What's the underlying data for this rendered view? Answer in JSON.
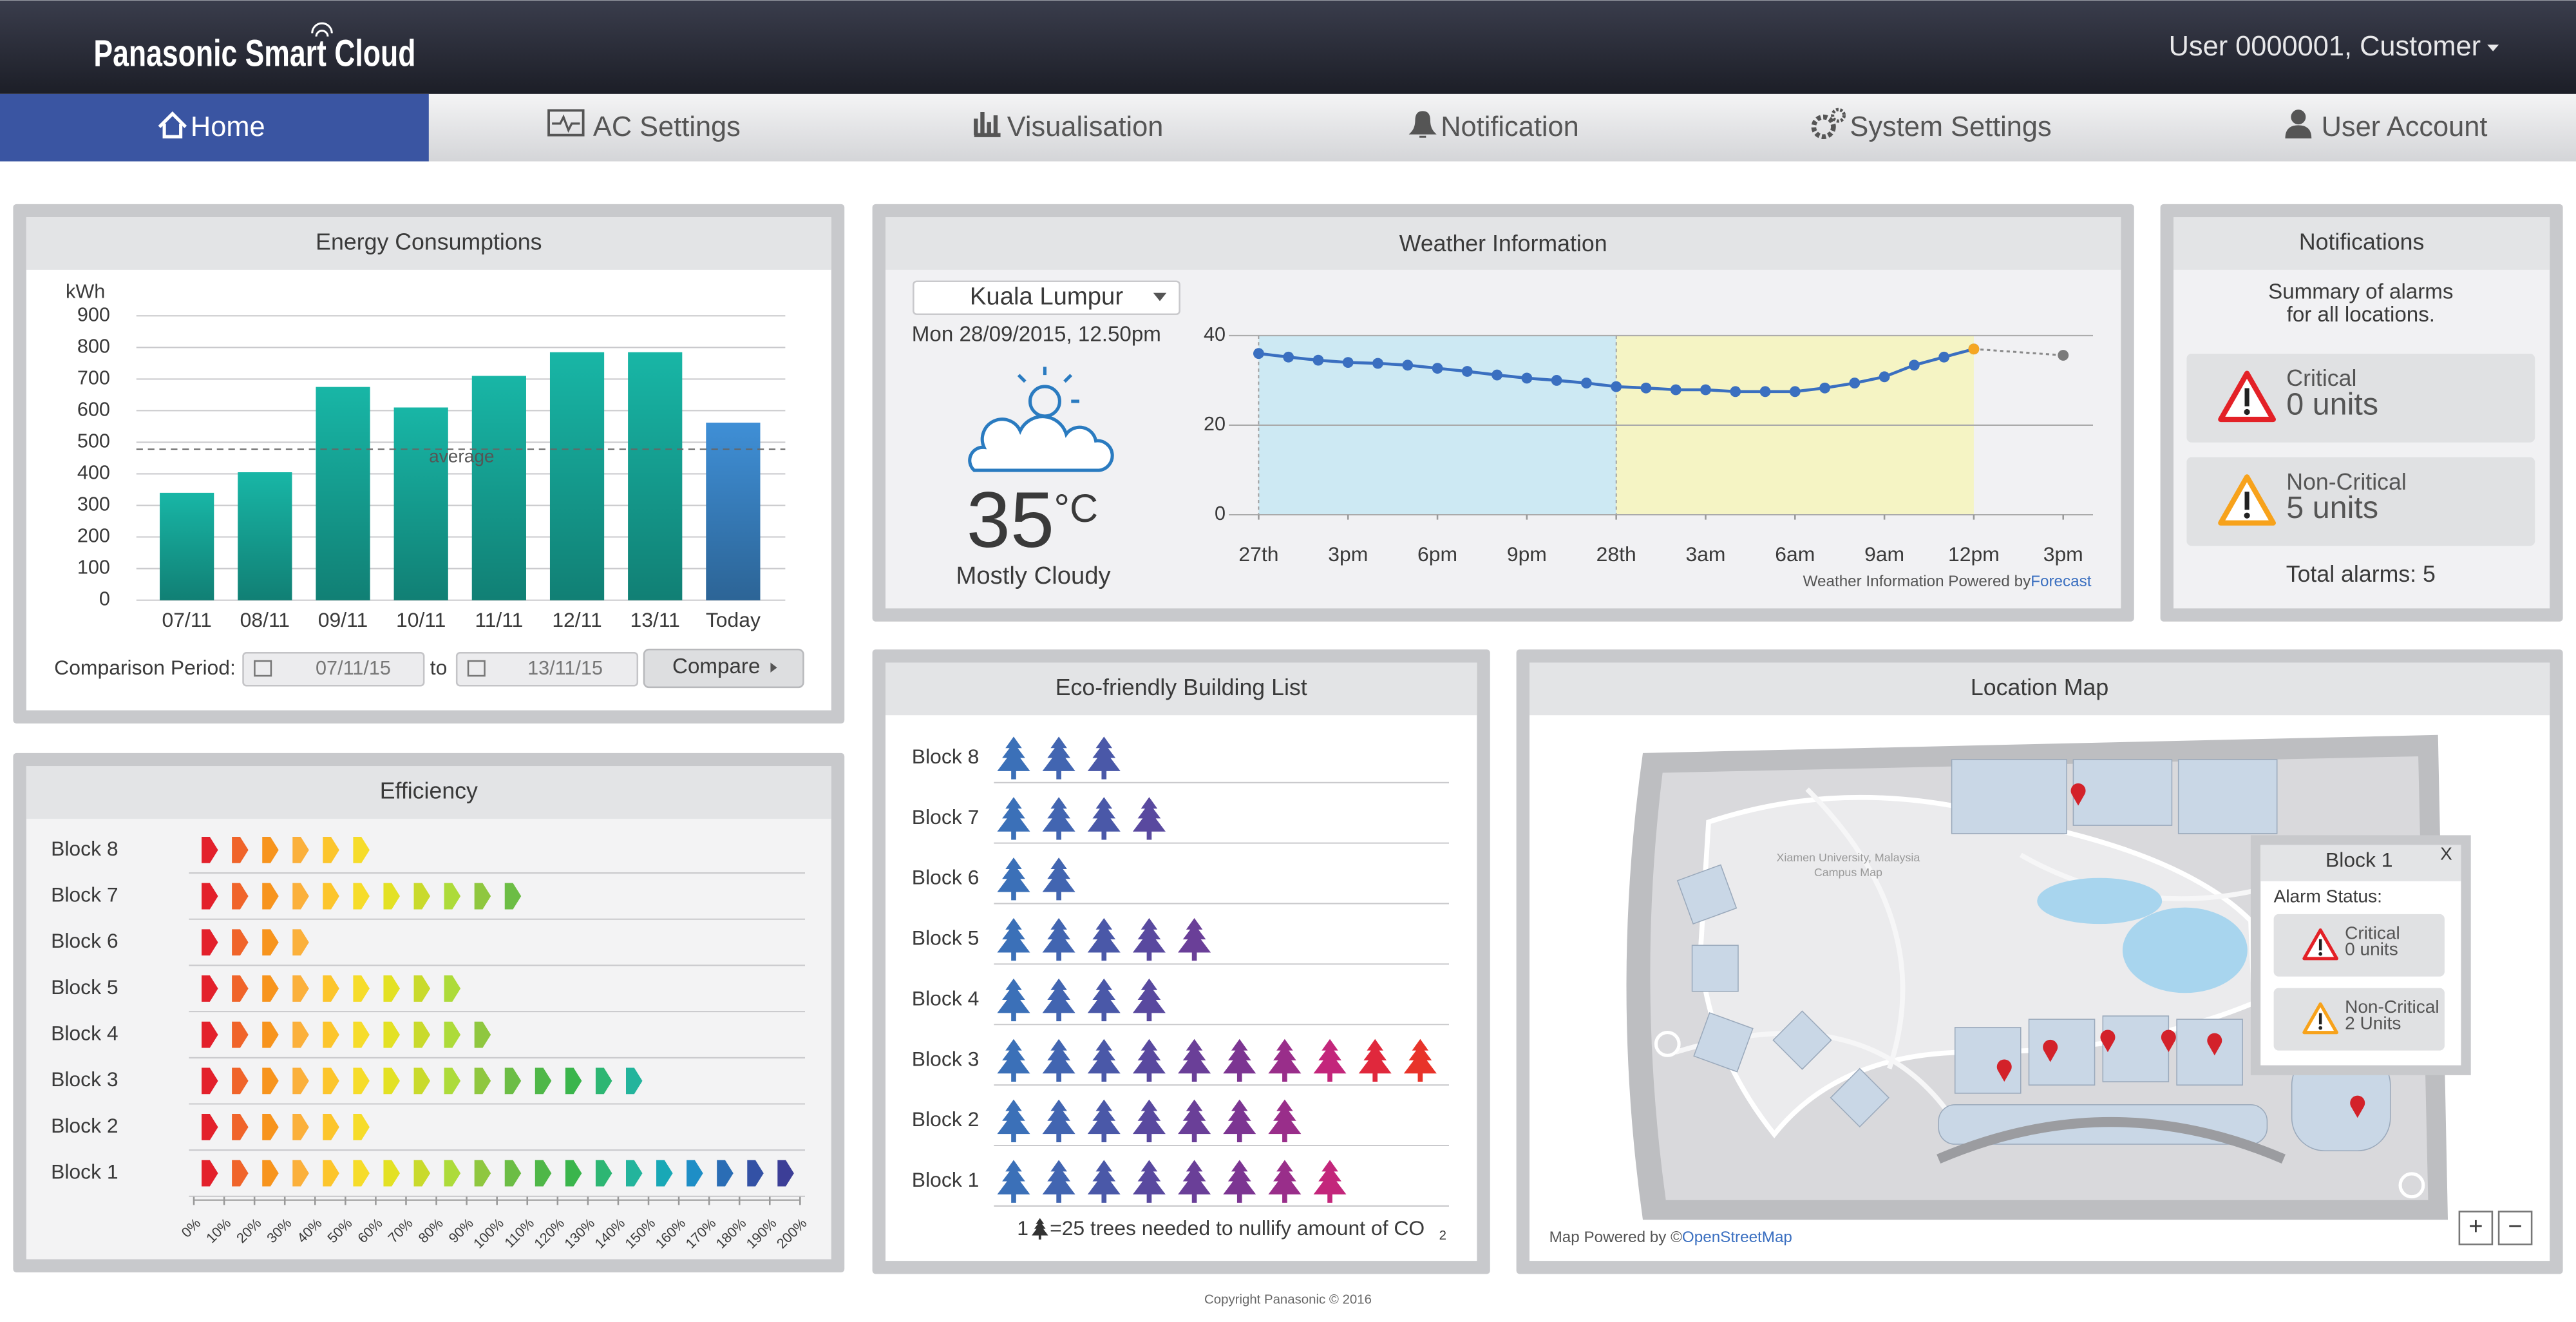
{
  "header": {
    "brand": "Panasonic Smart Cloud",
    "user": "User 0000001, Customer"
  },
  "nav": [
    "Home",
    "AC Settings",
    "Visualisation",
    "Notification",
    "System Settings",
    "User Account"
  ],
  "energy": {
    "title": "Energy Consumptions",
    "chart": {
      "type": "bar",
      "y_label": "kWh",
      "categories": [
        "07/11",
        "08/11",
        "09/11",
        "10/11",
        "11/11",
        "12/11",
        "13/11",
        "Today"
      ],
      "values": [
        340,
        405,
        675,
        610,
        710,
        785,
        785,
        562
      ],
      "colors": [
        "#18b6a6",
        "#18b6a6",
        "#18b6a6",
        "#18b6a6",
        "#18b6a6",
        "#18b6a6",
        "#18b6a6",
        "#3f8fd6"
      ],
      "ylim": [
        0,
        900
      ],
      "yticks": [
        0,
        100,
        200,
        300,
        400,
        500,
        600,
        700,
        800,
        900
      ],
      "grid": true,
      "average": 478,
      "average_label": "average"
    },
    "comparison_label": "Comparison Period:",
    "from": "07/11/15",
    "to_word": "to",
    "to": "13/11/15",
    "button": "Compare"
  },
  "weather": {
    "title": "Weather Information",
    "location": "Kuala Lumpur",
    "datetime": "Mon 28/09/2015, 12.50pm",
    "temperature": "35",
    "unit": "°C",
    "condition": "Mostly Cloudy",
    "chart": {
      "type": "line",
      "xlim": [
        -1,
        28
      ],
      "xticks": [
        {
          "value": 0,
          "label": "27th"
        },
        {
          "value": 3,
          "label": "3pm"
        },
        {
          "value": 6,
          "label": "6pm"
        },
        {
          "value": 9,
          "label": "9pm"
        },
        {
          "value": 12,
          "label": "28th"
        },
        {
          "value": 15,
          "label": "3am"
        },
        {
          "value": 18,
          "label": "6am"
        },
        {
          "value": 21,
          "label": "9am"
        },
        {
          "value": 24,
          "label": "12pm"
        },
        {
          "value": 27,
          "label": "3pm"
        }
      ],
      "ylim": [
        0,
        40
      ],
      "yticks": [
        0,
        20,
        40
      ],
      "grid": true,
      "bands": [
        {
          "from": 0,
          "to": 12,
          "color": "#cde9f3"
        },
        {
          "from": 12,
          "to": 24,
          "color": "#f5f4c4"
        }
      ],
      "series": [
        {
          "color": "#3a6fc0",
          "x": [
            0,
            1,
            2,
            3,
            4,
            5,
            6,
            7,
            8,
            9,
            10,
            11,
            12,
            13,
            14,
            15,
            16,
            17,
            18,
            19,
            20,
            21,
            22,
            23,
            24
          ],
          "values": [
            36,
            35.2,
            34.5,
            34,
            33.8,
            33.4,
            32.7,
            32,
            31.2,
            30.5,
            30,
            29.4,
            28.6,
            28.3,
            27.9,
            27.9,
            27.5,
            27.5,
            27.5,
            28.3,
            29.4,
            30.8,
            33.4,
            35.2,
            37
          ]
        },
        {
          "color": "#8a8a8a",
          "dashed": true,
          "x": [
            24,
            27
          ],
          "values": [
            37,
            35.6
          ],
          "point_colors": [
            "#f5a623",
            "#7a7a7a"
          ]
        }
      ]
    },
    "credit": "Weather Information Powered by ",
    "credit_link": "Forecast"
  },
  "notifications": {
    "title": "Notifications",
    "summary": [
      "Summary of alarms",
      "for all locations."
    ],
    "critical_label": "Critical",
    "critical_value": "0 units",
    "noncritical_label": "Non-Critical",
    "noncritical_value": "5 units",
    "total": "Total alarms: 5"
  },
  "efficiency": {
    "title": "Efficiency",
    "chart": {
      "type": "arrows",
      "categories": [
        "Block 8",
        "Block 7",
        "Block 6",
        "Block 5",
        "Block 4",
        "Block 3",
        "Block 2",
        "Block 1"
      ],
      "values": [
        60,
        110,
        40,
        90,
        100,
        150,
        60,
        200
      ],
      "xlim": [
        0,
        200
      ],
      "xticks": [
        {
          "value": 0,
          "label": "0%"
        },
        {
          "value": 10,
          "label": "10%"
        },
        {
          "value": 20,
          "label": "20%"
        },
        {
          "value": 30,
          "label": "30%"
        },
        {
          "value": 40,
          "label": "40%"
        },
        {
          "value": 50,
          "label": "50%"
        },
        {
          "value": 60,
          "label": "60%"
        },
        {
          "value": 70,
          "label": "70%"
        },
        {
          "value": 80,
          "label": "80%"
        },
        {
          "value": 90,
          "label": "90%"
        },
        {
          "value": 100,
          "label": "100%"
        },
        {
          "value": 110,
          "label": "110%"
        },
        {
          "value": 120,
          "label": "120%"
        },
        {
          "value": 130,
          "label": "130%"
        },
        {
          "value": 140,
          "label": "140%"
        },
        {
          "value": 150,
          "label": "150%"
        },
        {
          "value": 160,
          "label": "160%"
        },
        {
          "value": 170,
          "label": "170%"
        },
        {
          "value": 180,
          "label": "180%"
        },
        {
          "value": 190,
          "label": "190%"
        },
        {
          "value": 200,
          "label": "200%"
        }
      ],
      "colors": [
        "#e3202b",
        "#f0642a",
        "#f7941d",
        "#fbb03b",
        "#fcc52c",
        "#f6dc2a",
        "#e3e124",
        "#c9da2c",
        "#addb3a",
        "#8fc73f",
        "#6cbd45",
        "#4fb748",
        "#3ab54c",
        "#2db673",
        "#23b49c",
        "#18a8b6",
        "#1e8ec6",
        "#2a6db5",
        "#3351a5",
        "#3c3e97"
      ]
    }
  },
  "eco": {
    "title": "Eco-friendly Building List",
    "chart": {
      "type": "pictogram",
      "categories": [
        "Block 8",
        "Block 7",
        "Block 6",
        "Block 5",
        "Block 4",
        "Block 3",
        "Block 2",
        "Block 1"
      ],
      "values": [
        3,
        4,
        2,
        5,
        4,
        10,
        7,
        8
      ],
      "colors": [
        "#3b70b8",
        "#4265b1",
        "#4a58a8",
        "#59499f",
        "#6a3f98",
        "#7c3592",
        "#992e8a",
        "#c3267b",
        "#e0283c",
        "#e8332a"
      ]
    },
    "legend_count": "1",
    "legend_text": "=25 trees needed to nullify amount of CO",
    "legend_sub": "2"
  },
  "map": {
    "title": "Location Map",
    "campus": [
      "Xiamen University, Malaysia",
      "Campus Map"
    ],
    "credit": "Map Powered by ©",
    "credit_link": "OpenStreetMap",
    "popup": {
      "title": "Block 1",
      "close": "X",
      "status": "Alarm Status:",
      "critical_label": "Critical",
      "critical_value": "0 units",
      "noncritical_label": "Non-Critical",
      "noncritical_value": "2 Units"
    },
    "zoom_in": "+",
    "zoom_out": "−"
  },
  "footer": "Copyright Panasonic © 2016"
}
